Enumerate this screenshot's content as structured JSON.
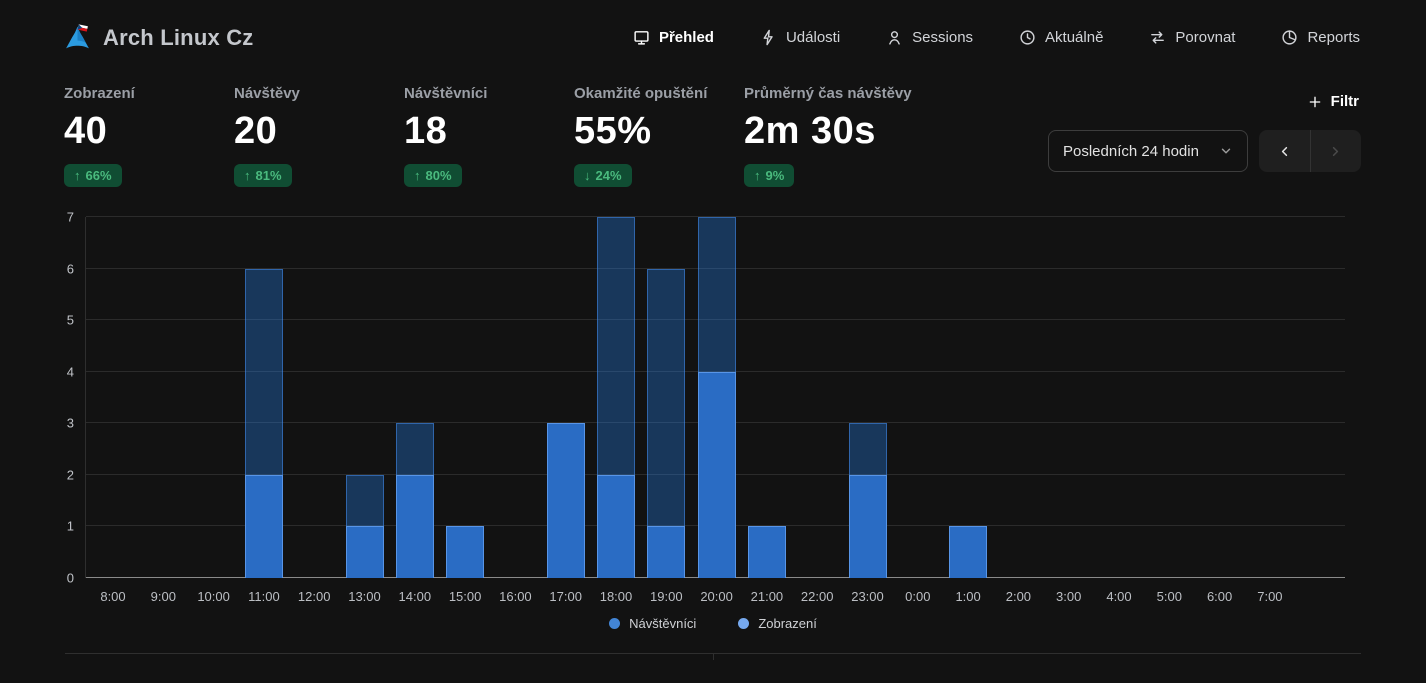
{
  "app": {
    "title": "Arch Linux Cz",
    "logo": "arch-linux-cz-logo"
  },
  "nav": {
    "items": [
      {
        "id": "prehled",
        "label": "Přehled",
        "icon": "monitor-icon",
        "active": true
      },
      {
        "id": "udalosti",
        "label": "Události",
        "icon": "lightning-icon",
        "active": false
      },
      {
        "id": "sessions",
        "label": "Sessions",
        "icon": "user-icon",
        "active": false
      },
      {
        "id": "aktualne",
        "label": "Aktuálně",
        "icon": "clock-icon",
        "active": false
      },
      {
        "id": "porovnat",
        "label": "Porovnat",
        "icon": "compare-arrows-icon",
        "active": false
      },
      {
        "id": "reports",
        "label": "Reports",
        "icon": "pie-chart-icon",
        "active": false
      }
    ]
  },
  "metrics": [
    {
      "id": "zobrazeni",
      "label": "Zobrazení",
      "value": "40",
      "change": "66%",
      "direction": "up"
    },
    {
      "id": "navstevy",
      "label": "Návštěvy",
      "value": "20",
      "change": "81%",
      "direction": "up"
    },
    {
      "id": "navstevnici",
      "label": "Návštěvníci",
      "value": "18",
      "change": "80%",
      "direction": "up"
    },
    {
      "id": "opusteni",
      "label": "Okamžité opuštění",
      "value": "55%",
      "change": "24%",
      "direction": "down"
    },
    {
      "id": "prumerny-cas",
      "label": "Průměrný čas návštěvy",
      "value": "2m 30s",
      "change": "9%",
      "direction": "up"
    }
  ],
  "controls": {
    "filter_label": "Filtr",
    "date_range_value": "Posledních 24 hodin"
  },
  "chart_data": {
    "type": "bar",
    "mode": "overlay",
    "title": "",
    "xlabel": "",
    "ylabel": "",
    "x": [
      "8:00",
      "9:00",
      "10:00",
      "11:00",
      "12:00",
      "13:00",
      "14:00",
      "15:00",
      "16:00",
      "17:00",
      "18:00",
      "19:00",
      "20:00",
      "21:00",
      "22:00",
      "23:00",
      "0:00",
      "1:00",
      "2:00",
      "3:00",
      "4:00",
      "5:00",
      "6:00",
      "7:00"
    ],
    "series": [
      {
        "name": "Zobrazení",
        "values": [
          0,
          0,
          0,
          6,
          0,
          2,
          3,
          1,
          0,
          3,
          7,
          6,
          7,
          1,
          0,
          3,
          0,
          1,
          0,
          0,
          0,
          0,
          0,
          0
        ],
        "color": "#1f4572"
      },
      {
        "name": "Návštěvníci",
        "values": [
          0,
          0,
          0,
          2,
          0,
          1,
          2,
          1,
          0,
          3,
          2,
          1,
          4,
          1,
          0,
          2,
          0,
          1,
          0,
          0,
          0,
          0,
          0,
          0
        ],
        "color": "#2a6cc4"
      }
    ],
    "ylim": [
      0,
      7
    ],
    "yticks": [
      0,
      1,
      2,
      3,
      4,
      5,
      6,
      7
    ],
    "grid": "horizontal",
    "legend_position": "bottom"
  },
  "legend": [
    {
      "label": "Návštěvníci",
      "color": "#4285d6"
    },
    {
      "label": "Zobrazení",
      "color": "#76a9ee"
    }
  ],
  "colors": {
    "background": "#121212",
    "badge_bg": "#104d33",
    "badge_text": "#4aba7e",
    "bar_views": "rgba(38,128,235,0.34)",
    "bar_visitors": "#2a6cc4",
    "logo_blue": "#2b9be0"
  }
}
